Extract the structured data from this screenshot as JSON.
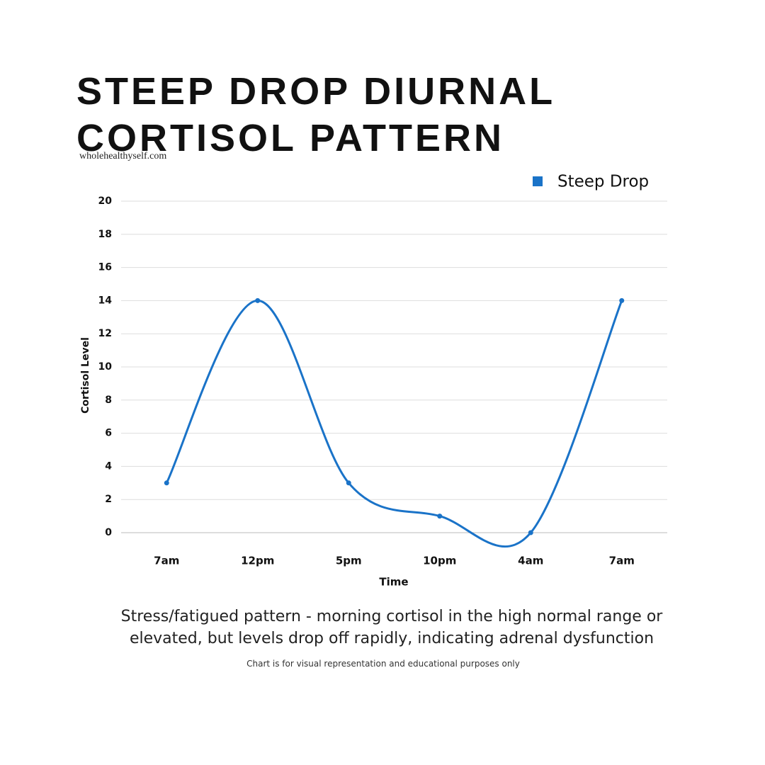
{
  "chart_data": {
    "type": "line",
    "title": "STEEP DROP DIURNAL CORTISOL PATTERN",
    "subtitle": "wholehealthyself.com",
    "x_label": "Time",
    "y_label": "Cortisol Level",
    "categories": [
      "7am",
      "12pm",
      "5pm",
      "10pm",
      "4am",
      "7am"
    ],
    "series": [
      {
        "name": "Steep Drop",
        "color": "#1a73c8",
        "values": [
          3,
          14,
          3,
          1,
          0,
          14
        ]
      }
    ],
    "ylim": [
      0,
      20
    ],
    "yticks": [
      0,
      2,
      4,
      6,
      8,
      10,
      12,
      14,
      16,
      18,
      20
    ],
    "grid": true,
    "legend": "top-right",
    "smooth": true,
    "caption": "Stress/fatigued pattern - morning cortisol in the high normal range or elevated, but levels drop off rapidly, indicating adrenal dysfunction",
    "footnote": "Chart is for visual representation and educational purposes only"
  }
}
